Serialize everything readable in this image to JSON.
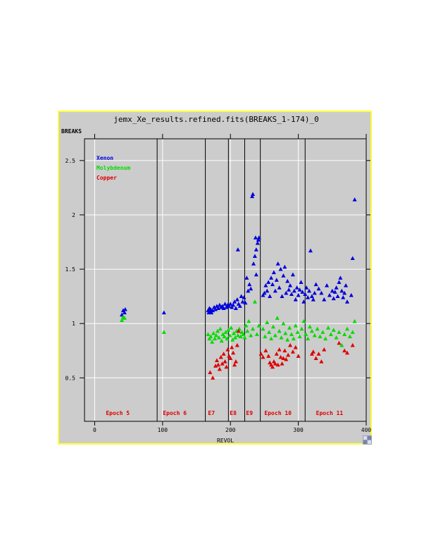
{
  "chart_data": {
    "type": "scatter",
    "title": "jemx_Xe_results.refined.fits(BREAKS_1-174)_0",
    "xlabel": "REVOL",
    "ylabel": "BREAKS",
    "xlim": [
      -15,
      400
    ],
    "ylim": [
      0.1,
      2.7
    ],
    "x_ticks": [
      0,
      100,
      200,
      300,
      400
    ],
    "x_tick_labels": [
      "0",
      "100",
      "200",
      "300",
      "400"
    ],
    "y_ticks": [
      0.5,
      1,
      1.5,
      2,
      2.5
    ],
    "y_tick_labels": [
      "0.5",
      "1",
      "1.5",
      "2",
      "2.5"
    ],
    "grid": true,
    "legend": "top-left",
    "marker": "triangle",
    "colors": {
      "background": "#cccccc",
      "frame": "#ffff33",
      "grid": "#ffffff",
      "axis": "#000000",
      "epoch_label": "#dd0000"
    },
    "epoch_lines": [
      92,
      163,
      197,
      221,
      244,
      310
    ],
    "epoch_labels": [
      {
        "text": "Epoch 5",
        "x": 34
      },
      {
        "text": "Epoch 6",
        "x": 118
      },
      {
        "text": "E7",
        "x": 172
      },
      {
        "text": "E8",
        "x": 204
      },
      {
        "text": "E9",
        "x": 228
      },
      {
        "text": "Epoch 10",
        "x": 270
      },
      {
        "text": "Epoch 11",
        "x": 346
      }
    ],
    "series": [
      {
        "name": "Xenon",
        "color": "#0000dd",
        "points": [
          [
            40,
            1.08
          ],
          [
            42,
            1.12
          ],
          [
            44,
            1.1
          ],
          [
            45,
            1.13
          ],
          [
            102,
            1.1
          ],
          [
            167,
            1.12
          ],
          [
            168,
            1.1
          ],
          [
            169,
            1.14
          ],
          [
            170,
            1.11
          ],
          [
            171,
            1.13
          ],
          [
            172,
            1.1
          ],
          [
            174,
            1.12
          ],
          [
            176,
            1.15
          ],
          [
            178,
            1.13
          ],
          [
            180,
            1.16
          ],
          [
            182,
            1.14
          ],
          [
            184,
            1.17
          ],
          [
            186,
            1.15
          ],
          [
            188,
            1.16
          ],
          [
            190,
            1.14
          ],
          [
            192,
            1.18
          ],
          [
            194,
            1.15
          ],
          [
            196,
            1.17
          ],
          [
            198,
            1.16
          ],
          [
            200,
            1.18
          ],
          [
            202,
            1.15
          ],
          [
            204,
            1.17
          ],
          [
            206,
            1.2
          ],
          [
            208,
            1.14
          ],
          [
            210,
            1.22
          ],
          [
            212,
            1.18
          ],
          [
            214,
            1.16
          ],
          [
            216,
            1.25
          ],
          [
            218,
            1.2
          ],
          [
            220,
            1.24
          ],
          [
            222,
            1.19
          ],
          [
            224,
            1.42
          ],
          [
            226,
            1.3
          ],
          [
            228,
            1.36
          ],
          [
            230,
            1.32
          ],
          [
            232,
            2.17
          ],
          [
            233,
            2.19
          ],
          [
            234,
            1.55
          ],
          [
            236,
            1.62
          ],
          [
            237,
            1.79
          ],
          [
            238,
            1.45
          ],
          [
            240,
            1.74
          ],
          [
            241,
            1.77
          ],
          [
            242,
            1.79
          ],
          [
            238,
            1.68
          ],
          [
            211,
            1.68
          ],
          [
            248,
            1.26
          ],
          [
            250,
            1.28
          ],
          [
            252,
            1.35
          ],
          [
            254,
            1.3
          ],
          [
            256,
            1.38
          ],
          [
            258,
            1.25
          ],
          [
            260,
            1.42
          ],
          [
            262,
            1.36
          ],
          [
            264,
            1.47
          ],
          [
            266,
            1.3
          ],
          [
            268,
            1.4
          ],
          [
            270,
            1.55
          ],
          [
            272,
            1.33
          ],
          [
            274,
            1.5
          ],
          [
            276,
            1.25
          ],
          [
            278,
            1.44
          ],
          [
            280,
            1.52
          ],
          [
            282,
            1.28
          ],
          [
            284,
            1.39
          ],
          [
            286,
            1.31
          ],
          [
            288,
            1.35
          ],
          [
            290,
            1.27
          ],
          [
            292,
            1.45
          ],
          [
            294,
            1.3
          ],
          [
            296,
            1.22
          ],
          [
            298,
            1.33
          ],
          [
            300,
            1.26
          ],
          [
            302,
            1.31
          ],
          [
            304,
            1.38
          ],
          [
            306,
            1.29
          ],
          [
            308,
            1.2
          ],
          [
            310,
            1.27
          ],
          [
            312,
            1.33
          ],
          [
            314,
            1.24
          ],
          [
            316,
            1.3
          ],
          [
            318,
            1.67
          ],
          [
            320,
            1.25
          ],
          [
            322,
            1.22
          ],
          [
            324,
            1.28
          ],
          [
            326,
            1.36
          ],
          [
            330,
            1.32
          ],
          [
            334,
            1.28
          ],
          [
            338,
            1.22
          ],
          [
            342,
            1.35
          ],
          [
            346,
            1.26
          ],
          [
            350,
            1.3
          ],
          [
            352,
            1.23
          ],
          [
            354,
            1.29
          ],
          [
            356,
            1.33
          ],
          [
            358,
            1.25
          ],
          [
            360,
            1.38
          ],
          [
            362,
            1.42
          ],
          [
            364,
            1.3
          ],
          [
            366,
            1.24
          ],
          [
            368,
            1.28
          ],
          [
            370,
            1.35
          ],
          [
            372,
            1.2
          ],
          [
            378,
            1.26
          ],
          [
            380,
            1.6
          ],
          [
            383,
            2.14
          ]
        ]
      },
      {
        "name": "Molybdenum",
        "color": "#00dd00",
        "points": [
          [
            40,
            1.03
          ],
          [
            42,
            1.06
          ],
          [
            44,
            1.05
          ],
          [
            102,
            0.92
          ],
          [
            167,
            0.9
          ],
          [
            169,
            0.86
          ],
          [
            171,
            0.88
          ],
          [
            173,
            0.83
          ],
          [
            175,
            0.91
          ],
          [
            177,
            0.86
          ],
          [
            179,
            0.89
          ],
          [
            181,
            0.93
          ],
          [
            183,
            0.87
          ],
          [
            185,
            0.95
          ],
          [
            187,
            0.84
          ],
          [
            189,
            0.9
          ],
          [
            191,
            0.88
          ],
          [
            193,
            0.92
          ],
          [
            195,
            0.86
          ],
          [
            197,
            0.94
          ],
          [
            199,
            0.89
          ],
          [
            201,
            0.96
          ],
          [
            203,
            0.85
          ],
          [
            205,
            0.91
          ],
          [
            207,
            0.87
          ],
          [
            209,
            0.93
          ],
          [
            211,
            0.89
          ],
          [
            213,
            0.95
          ],
          [
            215,
            0.88
          ],
          [
            217,
            0.92
          ],
          [
            219,
            0.9
          ],
          [
            221,
            0.87
          ],
          [
            223,
            0.98
          ],
          [
            225,
            0.93
          ],
          [
            227,
            1.02
          ],
          [
            230,
            0.89
          ],
          [
            233,
            0.95
          ],
          [
            236,
            1.2
          ],
          [
            239,
            0.9
          ],
          [
            242,
            0.98
          ],
          [
            248,
            0.95
          ],
          [
            251,
            0.88
          ],
          [
            254,
            1.01
          ],
          [
            257,
            0.92
          ],
          [
            260,
            0.86
          ],
          [
            263,
            0.97
          ],
          [
            266,
            0.89
          ],
          [
            269,
            1.05
          ],
          [
            272,
            0.93
          ],
          [
            275,
            0.87
          ],
          [
            278,
            1.0
          ],
          [
            281,
            0.91
          ],
          [
            284,
            0.85
          ],
          [
            287,
            0.96
          ],
          [
            290,
            0.9
          ],
          [
            293,
            0.86
          ],
          [
            296,
            0.98
          ],
          [
            299,
            0.92
          ],
          [
            302,
            0.88
          ],
          [
            305,
            0.95
          ],
          [
            308,
            1.02
          ],
          [
            311,
            0.9
          ],
          [
            314,
            0.86
          ],
          [
            317,
            0.97
          ],
          [
            320,
            0.93
          ],
          [
            324,
            0.89
          ],
          [
            328,
            0.95
          ],
          [
            332,
            0.88
          ],
          [
            336,
            0.92
          ],
          [
            340,
            0.86
          ],
          [
            344,
            0.96
          ],
          [
            348,
            0.9
          ],
          [
            352,
            0.94
          ],
          [
            356,
            0.87
          ],
          [
            360,
            0.92
          ],
          [
            364,
            0.8
          ],
          [
            368,
            0.9
          ],
          [
            372,
            0.95
          ],
          [
            376,
            0.88
          ],
          [
            380,
            0.92
          ],
          [
            383,
            1.02
          ]
        ]
      },
      {
        "name": "Copper",
        "color": "#dd0000",
        "points": [
          [
            170,
            0.55
          ],
          [
            174,
            0.5
          ],
          [
            178,
            0.61
          ],
          [
            180,
            0.66
          ],
          [
            182,
            0.62
          ],
          [
            184,
            0.58
          ],
          [
            186,
            0.69
          ],
          [
            188,
            0.63
          ],
          [
            190,
            0.72
          ],
          [
            192,
            0.65
          ],
          [
            194,
            0.6
          ],
          [
            196,
            0.76
          ],
          [
            198,
            0.7
          ],
          [
            200,
            0.68
          ],
          [
            202,
            0.78
          ],
          [
            204,
            0.73
          ],
          [
            206,
            0.62
          ],
          [
            208,
            0.65
          ],
          [
            210,
            0.8
          ],
          [
            212,
            0.93
          ],
          [
            245,
            0.72
          ],
          [
            248,
            0.69
          ],
          [
            252,
            0.75
          ],
          [
            256,
            0.7
          ],
          [
            258,
            0.64
          ],
          [
            260,
            0.62
          ],
          [
            262,
            0.6
          ],
          [
            264,
            0.65
          ],
          [
            266,
            0.63
          ],
          [
            268,
            0.72
          ],
          [
            270,
            0.62
          ],
          [
            272,
            0.76
          ],
          [
            274,
            0.69
          ],
          [
            276,
            0.63
          ],
          [
            278,
            0.68
          ],
          [
            280,
            0.75
          ],
          [
            282,
            0.67
          ],
          [
            285,
            0.71
          ],
          [
            288,
            0.8
          ],
          [
            292,
            0.74
          ],
          [
            296,
            0.78
          ],
          [
            300,
            0.7
          ],
          [
            320,
            0.72
          ],
          [
            322,
            0.74
          ],
          [
            326,
            0.68
          ],
          [
            330,
            0.72
          ],
          [
            334,
            0.65
          ],
          [
            338,
            0.76
          ],
          [
            360,
            0.82
          ],
          [
            368,
            0.75
          ],
          [
            372,
            0.73
          ],
          [
            380,
            0.8
          ]
        ]
      }
    ]
  }
}
